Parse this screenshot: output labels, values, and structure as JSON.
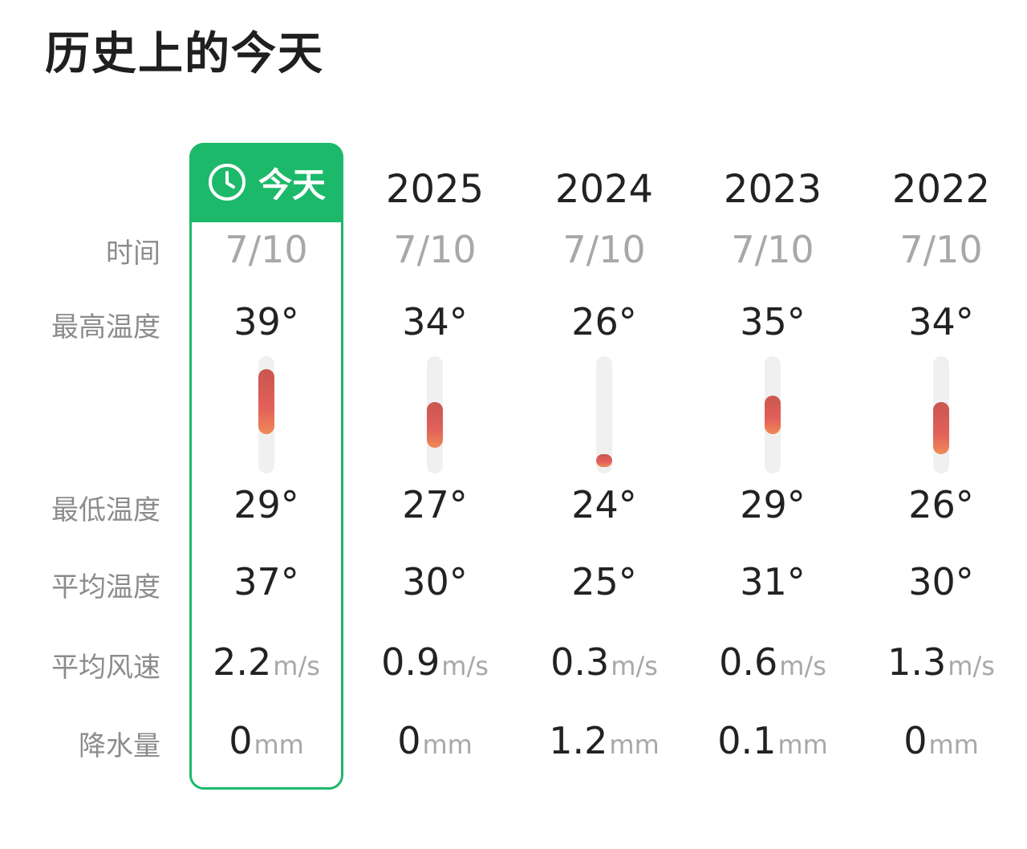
{
  "title": "历史上的今天",
  "row_labels": {
    "time": "时间",
    "high": "最高温度",
    "low": "最低温度",
    "avg": "平均温度",
    "wind": "平均风速",
    "rain": "降水量"
  },
  "today_label": "今天",
  "icons": {
    "today": "clock-icon"
  },
  "colors": {
    "accent": "#1db96a",
    "bar_top": "#c9564f",
    "bar_bottom": "#ef8a55",
    "track": "#f0f0f0",
    "muted": "#a8a8a8"
  },
  "columns": [
    {
      "header": "",
      "date": "7/10",
      "high": "39°",
      "low": "29°",
      "avg": "37°",
      "wind": "2.2",
      "wind_unit": "m/s",
      "rain": "0",
      "rain_unit": "mm"
    },
    {
      "header": "2025",
      "date": "7/10",
      "high": "34°",
      "low": "27°",
      "avg": "30°",
      "wind": "0.9",
      "wind_unit": "m/s",
      "rain": "0",
      "rain_unit": "mm"
    },
    {
      "header": "2024",
      "date": "7/10",
      "high": "26°",
      "low": "24°",
      "avg": "25°",
      "wind": "0.3",
      "wind_unit": "m/s",
      "rain": "1.2",
      "rain_unit": "mm"
    },
    {
      "header": "2023",
      "date": "7/10",
      "high": "35°",
      "low": "29°",
      "avg": "31°",
      "wind": "0.6",
      "wind_unit": "m/s",
      "rain": "0.1",
      "rain_unit": "mm"
    },
    {
      "header": "2022",
      "date": "7/10",
      "high": "34°",
      "low": "26°",
      "avg": "30°",
      "wind": "1.3",
      "wind_unit": "m/s",
      "rain": "0",
      "rain_unit": "mm"
    }
  ],
  "chart_data": {
    "type": "bar",
    "categories": [
      "今天",
      "2025",
      "2024",
      "2023",
      "2022"
    ],
    "series": [
      {
        "name": "最高温度",
        "values": [
          39,
          34,
          26,
          35,
          34
        ]
      },
      {
        "name": "最低温度",
        "values": [
          29,
          27,
          24,
          29,
          26
        ]
      }
    ],
    "ylim": [
      23,
      41
    ]
  }
}
